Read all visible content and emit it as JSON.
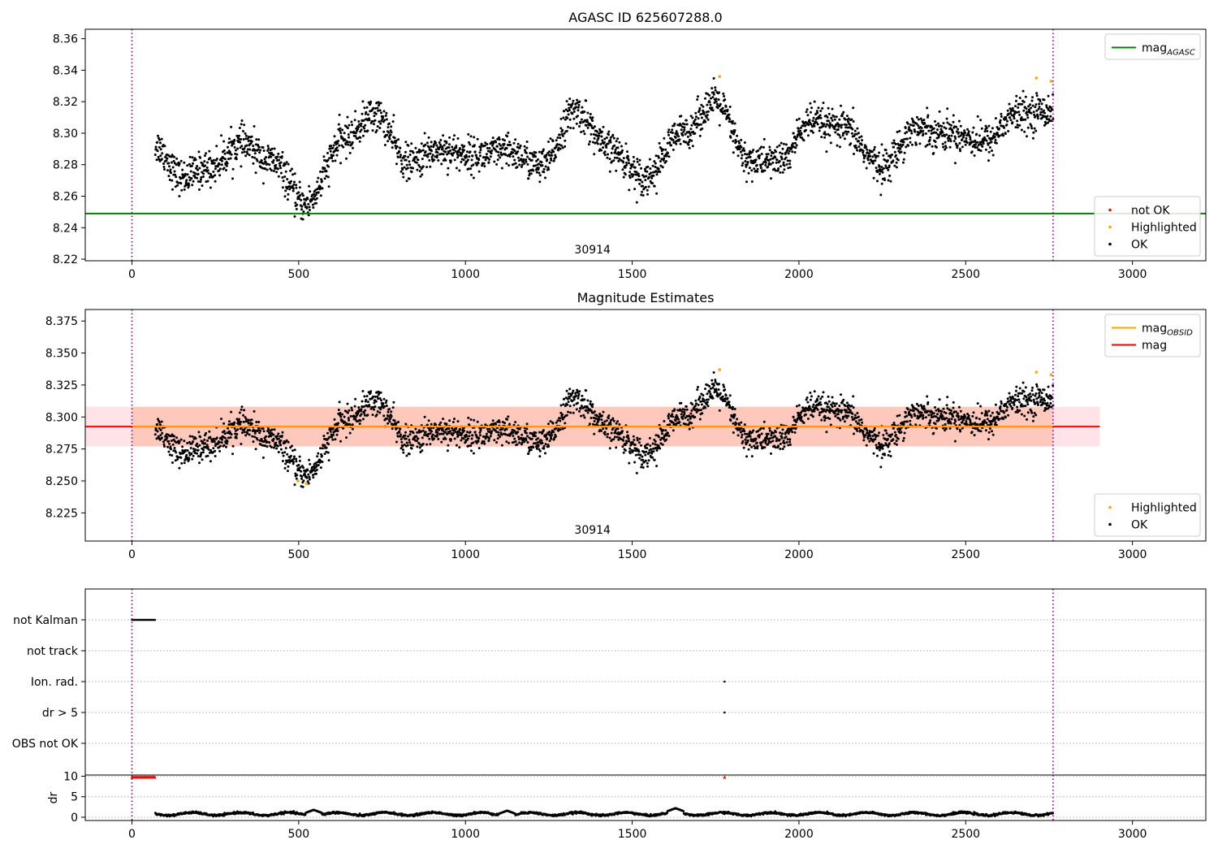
{
  "colors": {
    "ok": "#000000",
    "highlighted": "#ffa500",
    "not_ok": "#ff0000",
    "mag_agasc": "#008000",
    "mag_obsid": "#ffa500",
    "mag": "#ff0000",
    "band_outer": "#ffc0cb",
    "band_inner": "#ffa07a",
    "obs_boundary": "#800080",
    "grid": "#b0b0b0"
  },
  "chart_data": [
    {
      "type": "scatter",
      "title": "AGASC ID 625607288.0",
      "xlim": [
        -140,
        3220
      ],
      "ylim": [
        8.219,
        8.366
      ],
      "x_ticks": [
        0,
        500,
        1000,
        1500,
        2000,
        2500,
        3000
      ],
      "x_tick_labels": [
        "0",
        "500",
        "1000",
        "1500",
        "2000",
        "2500",
        "3000"
      ],
      "y_ticks": [
        8.22,
        8.24,
        8.26,
        8.28,
        8.3,
        8.32,
        8.34,
        8.36
      ],
      "y_tick_labels": [
        "8.22",
        "8.24",
        "8.26",
        "8.28",
        "8.30",
        "8.32",
        "8.34",
        "8.36"
      ],
      "obsid_boundaries": [
        0,
        2762
      ],
      "obsid_label": "30914",
      "obsid_label_x": 1381,
      "hlines": [
        {
          "name": "mag_AGASC",
          "y": 8.249,
          "color_key": "mag_agasc"
        }
      ],
      "series_profile": {
        "x_start": 70,
        "x_end": 2762,
        "n_points": 2700,
        "mean": 8.2925,
        "knots_x": [
          70,
          150,
          230,
          330,
          420,
          520,
          640,
          730,
          830,
          920,
          1020,
          1130,
          1230,
          1330,
          1430,
          1540,
          1650,
          1750,
          1850,
          1950,
          2030,
          2130,
          2250,
          2350,
          2450,
          2560,
          2650,
          2762
        ],
        "knots_y": [
          8.292,
          8.272,
          8.278,
          8.293,
          8.282,
          8.255,
          8.297,
          8.312,
          8.281,
          8.29,
          8.286,
          8.288,
          8.279,
          8.314,
          8.29,
          8.272,
          8.3,
          8.32,
          8.282,
          8.283,
          8.307,
          8.303,
          8.279,
          8.303,
          8.3,
          8.295,
          8.312,
          8.315
        ],
        "scatter": 0.0055
      },
      "highlighted_points": [
        {
          "x": 1762,
          "y": 8.336
        },
        {
          "x": 2712,
          "y": 8.335
        },
        {
          "x": 2756,
          "y": 8.333
        }
      ],
      "legends": [
        {
          "position": "top-right",
          "entries": [
            {
              "label": "mag",
              "sub": "AGASC",
              "kind": "line",
              "color_key": "mag_agasc"
            }
          ]
        },
        {
          "position": "bottom-right",
          "entries": [
            {
              "label": "not OK",
              "kind": "dot",
              "color_key": "not_ok"
            },
            {
              "label": "Highlighted",
              "kind": "dot",
              "color_key": "highlighted"
            },
            {
              "label": "OK",
              "kind": "dot",
              "color_key": "ok"
            }
          ]
        }
      ]
    },
    {
      "type": "scatter",
      "title": "Magnitude Estimates",
      "xlim": [
        -140,
        3220
      ],
      "ylim": [
        8.203,
        8.384
      ],
      "x_ticks": [
        0,
        500,
        1000,
        1500,
        2000,
        2500,
        3000
      ],
      "x_tick_labels": [
        "0",
        "500",
        "1000",
        "1500",
        "2000",
        "2500",
        "3000"
      ],
      "y_ticks": [
        8.225,
        8.25,
        8.275,
        8.3,
        8.325,
        8.35,
        8.375
      ],
      "y_tick_labels": [
        "8.225",
        "8.250",
        "8.275",
        "8.300",
        "8.325",
        "8.350",
        "8.375"
      ],
      "obsid_boundaries": [
        0,
        2762
      ],
      "obsid_label": "30914",
      "obsid_label_x": 1381,
      "bands": [
        {
          "x": [
            -140,
            2902
          ],
          "y": [
            8.277,
            8.308
          ],
          "color_key": "band_outer"
        },
        {
          "x": [
            0,
            2762
          ],
          "y": [
            8.277,
            8.308
          ],
          "color_key": "band_inner"
        }
      ],
      "hlines": [
        {
          "name": "mag",
          "y": 8.2925,
          "x": [
            -140,
            2902
          ],
          "color_key": "mag"
        },
        {
          "name": "mag_OBSID",
          "y": 8.2925,
          "x": [
            0,
            2762
          ],
          "color_key": "mag_obsid"
        }
      ],
      "highlighted_points": [
        {
          "x": 498,
          "y": 8.25
        },
        {
          "x": 523,
          "y": 8.248
        },
        {
          "x": 1762,
          "y": 8.337
        },
        {
          "x": 2712,
          "y": 8.335
        },
        {
          "x": 2756,
          "y": 8.333
        }
      ],
      "legends": [
        {
          "position": "top-right",
          "entries": [
            {
              "label": "mag",
              "sub": "OBSID",
              "kind": "line",
              "color_key": "mag_obsid"
            },
            {
              "label": "mag",
              "kind": "line",
              "color_key": "mag"
            }
          ]
        },
        {
          "position": "bottom-right",
          "entries": [
            {
              "label": "Highlighted",
              "kind": "dot",
              "color_key": "highlighted"
            },
            {
              "label": "OK",
              "kind": "dot",
              "color_key": "ok"
            }
          ]
        }
      ]
    },
    {
      "type": "scatter",
      "xlim": [
        -140,
        3220
      ],
      "flag_rows": [
        "not Kalman",
        "not track",
        "Ion. rad.",
        "dr > 5",
        "OBS not OK"
      ],
      "flag_points": [
        {
          "row": "not Kalman",
          "x_range": [
            0,
            70
          ],
          "step": 3
        },
        {
          "row": "Ion. rad.",
          "x": [
            1777
          ]
        },
        {
          "row": "dr > 5",
          "x": [
            1777
          ]
        }
      ],
      "obsid_boundaries": [
        0,
        2762
      ]
    },
    {
      "type": "scatter",
      "ylabel": "dr",
      "xlim": [
        -140,
        3220
      ],
      "ylim": [
        -0.8,
        10.3
      ],
      "x_ticks": [
        0,
        500,
        1000,
        1500,
        2000,
        2500,
        3000
      ],
      "x_tick_labels": [
        "0",
        "500",
        "1000",
        "1500",
        "2000",
        "2500",
        "3000"
      ],
      "y_ticks": [
        0,
        5,
        10
      ],
      "y_tick_labels": [
        "0",
        "5",
        "10"
      ],
      "obsid_boundaries": [
        0,
        2762
      ],
      "saturated": [
        {
          "x_range": [
            0,
            70
          ],
          "step": 3,
          "y": 9.7
        },
        {
          "x": [
            1777
          ],
          "y": 9.7
        }
      ],
      "dr_profile": {
        "x_start": 70,
        "x_end": 2762,
        "step": 1.2,
        "mean": 0.8,
        "scatter": 0.35,
        "bumps": [
          {
            "x": 1630,
            "y": 2.2
          },
          {
            "x": 545,
            "y": 1.8
          },
          {
            "x": 1125,
            "y": 1.6
          }
        ]
      }
    }
  ]
}
